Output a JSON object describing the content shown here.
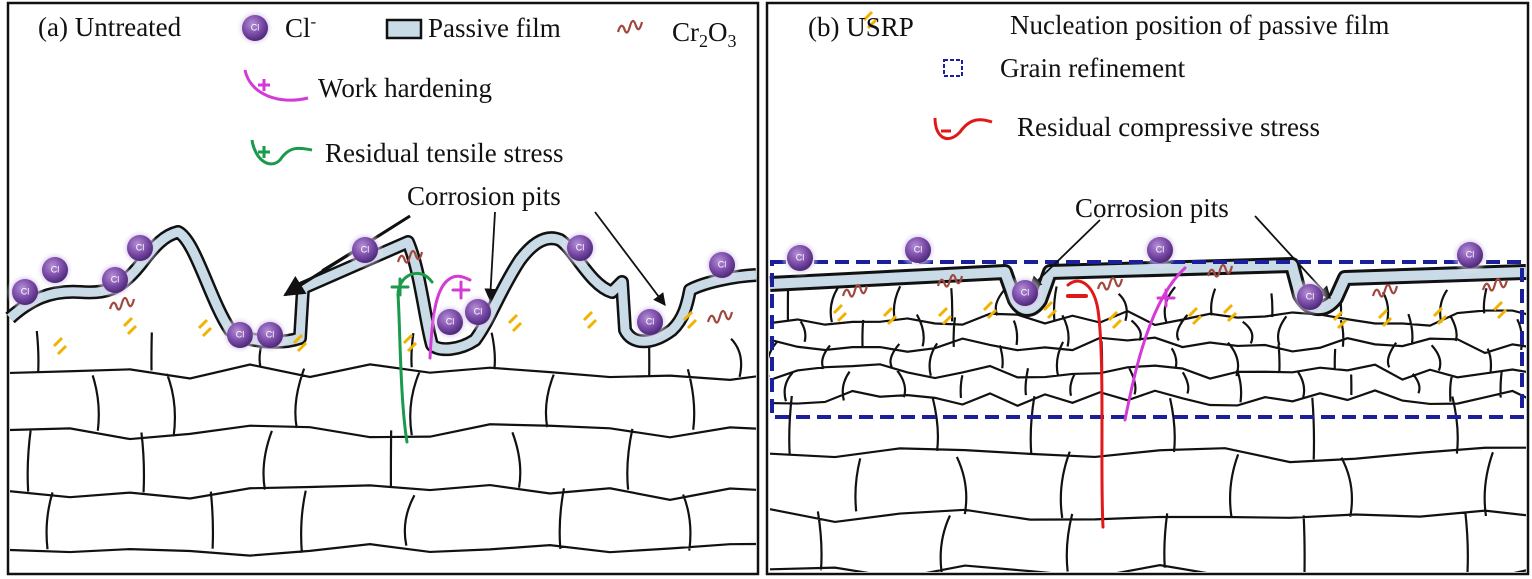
{
  "ion_label": "Cl",
  "panel_a": {
    "label": "(a) Untreated",
    "chloride": "Cl",
    "chloride_charge": "-",
    "passive_film": "Passive film",
    "oxide": [
      "Cr",
      "2",
      "O",
      "3"
    ],
    "work_hardening": "Work hardening",
    "tensile_stress": "Residual tensile stress",
    "pits": "Corrosion pits"
  },
  "panel_b": {
    "label": "(b) USRP",
    "nucleation": "Nucleation position of passive film",
    "grain_refinement": "Grain refinement",
    "compressive_stress": "Residual compressive stress",
    "pits": "Corrosion pits"
  }
}
